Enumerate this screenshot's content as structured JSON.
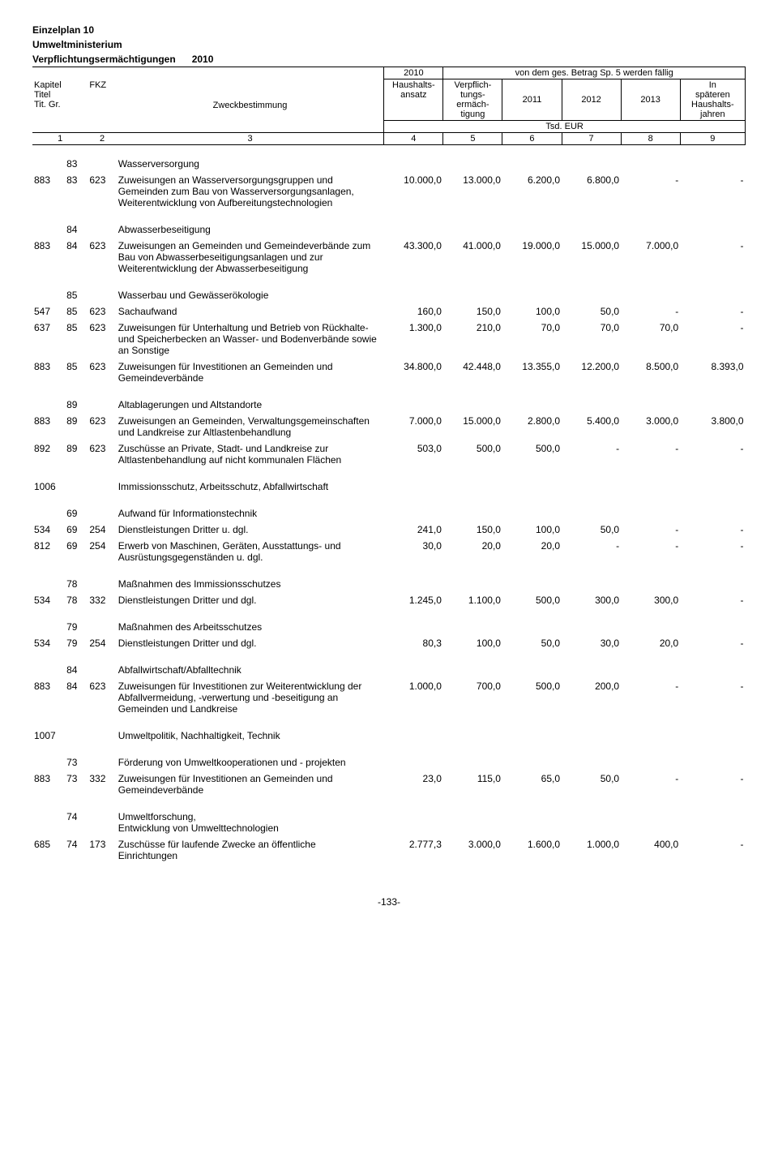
{
  "header": {
    "plan": "Einzelplan 10",
    "ministry": "Umweltministerium",
    "title": "Verpflichtungsermächtigungen",
    "year": "2010",
    "top_note_year": "2010",
    "top_note_right": "von dem ges. Betrag Sp. 5 werden fällig",
    "col_labels": {
      "kapitel": "Kapitel",
      "titel": "Titel",
      "titgr": "Tit. Gr.",
      "fkz": "FKZ",
      "zweck": "Zweckbestimmung",
      "haushalts": "Haushalts-\nansatz",
      "verpflich": "Verpflich-\ntungs-\nermäch-\ntigung",
      "y2011": "2011",
      "y2012": "2012",
      "y2013": "2013",
      "later": "In\nspäteren\nHaushalts-\njahren",
      "unit": "Tsd. EUR"
    },
    "colnums": [
      "1",
      "2",
      "3",
      "4",
      "5",
      "6",
      "7",
      "8",
      "9"
    ]
  },
  "rows": [
    {
      "type": "section",
      "c2": "83",
      "desc": "Wasserversorgung"
    },
    {
      "type": "data",
      "c1": "883",
      "c2": "83",
      "c3": "623",
      "desc": "Zuweisungen an Wasserversorgungsgruppen und Gemeinden zum Bau von Wasserversorgungsanlagen, Weiterentwicklung von Aufbereitungstechnologien",
      "v": [
        "10.000,0",
        "13.000,0",
        "6.200,0",
        "6.800,0",
        "-",
        "-"
      ]
    },
    {
      "type": "section",
      "c2": "84",
      "desc": "Abwasserbeseitigung"
    },
    {
      "type": "data",
      "c1": "883",
      "c2": "84",
      "c3": "623",
      "desc": "Zuweisungen an Gemeinden und Gemeindeverbände zum Bau von Abwasserbeseitigungsanlagen und zur Weiterentwicklung der Abwasserbeseitigung",
      "v": [
        "43.300,0",
        "41.000,0",
        "19.000,0",
        "15.000,0",
        "7.000,0",
        "-"
      ]
    },
    {
      "type": "section",
      "c2": "85",
      "desc": "Wasserbau und Gewässerökologie"
    },
    {
      "type": "data",
      "c1": "547",
      "c2": "85",
      "c3": "623",
      "desc": "Sachaufwand",
      "v": [
        "160,0",
        "150,0",
        "100,0",
        "50,0",
        "-",
        "-"
      ]
    },
    {
      "type": "data",
      "c1": "637",
      "c2": "85",
      "c3": "623",
      "desc": "Zuweisungen für Unterhaltung und Betrieb von Rückhalte- und Speicherbecken an Wasser- und Bodenverbände sowie an Sonstige",
      "v": [
        "1.300,0",
        "210,0",
        "70,0",
        "70,0",
        "70,0",
        "-"
      ]
    },
    {
      "type": "data",
      "c1": "883",
      "c2": "85",
      "c3": "623",
      "desc": "Zuweisungen für Investitionen an Gemeinden und Gemeindeverbände",
      "v": [
        "34.800,0",
        "42.448,0",
        "13.355,0",
        "12.200,0",
        "8.500,0",
        "8.393,0"
      ]
    },
    {
      "type": "section",
      "c2": "89",
      "desc": "Altablagerungen und Altstandorte"
    },
    {
      "type": "data",
      "c1": "883",
      "c2": "89",
      "c3": "623",
      "desc": "Zuweisungen an Gemeinden, Verwaltungsgemeinschaften und Landkreise zur Altlastenbehandlung",
      "v": [
        "7.000,0",
        "15.000,0",
        "2.800,0",
        "5.400,0",
        "3.000,0",
        "3.800,0"
      ]
    },
    {
      "type": "data",
      "c1": "892",
      "c2": "89",
      "c3": "623",
      "desc": "Zuschüsse an Private, Stadt- und Landkreise zur Altlastenbehandlung auf nicht kommunalen Flächen",
      "v": [
        "503,0",
        "500,0",
        "500,0",
        "-",
        "-",
        "-"
      ]
    },
    {
      "type": "chapter",
      "c0": "1006",
      "desc": "Immissionsschutz, Arbeitsschutz, Abfallwirtschaft"
    },
    {
      "type": "section",
      "c2": "69",
      "desc": "Aufwand für Informationstechnik"
    },
    {
      "type": "data",
      "c1": "534",
      "c2": "69",
      "c3": "254",
      "desc": "Dienstleistungen Dritter u. dgl.",
      "v": [
        "241,0",
        "150,0",
        "100,0",
        "50,0",
        "-",
        "-"
      ]
    },
    {
      "type": "data",
      "c1": "812",
      "c2": "69",
      "c3": "254",
      "desc": "Erwerb von Maschinen, Geräten, Ausstattungs- und Ausrüstungsgegenständen u. dgl.",
      "v": [
        "30,0",
        "20,0",
        "20,0",
        "-",
        "-",
        "-"
      ]
    },
    {
      "type": "section",
      "c2": "78",
      "desc": "Maßnahmen des Immissionsschutzes"
    },
    {
      "type": "data",
      "c1": "534",
      "c2": "78",
      "c3": "332",
      "desc": "Dienstleistungen Dritter und dgl.",
      "v": [
        "1.245,0",
        "1.100,0",
        "500,0",
        "300,0",
        "300,0",
        "-"
      ]
    },
    {
      "type": "section",
      "c2": "79",
      "desc": "Maßnahmen des Arbeitsschutzes"
    },
    {
      "type": "data",
      "c1": "534",
      "c2": "79",
      "c3": "254",
      "desc": "Dienstleistungen Dritter und dgl.",
      "v": [
        "80,3",
        "100,0",
        "50,0",
        "30,0",
        "20,0",
        "-"
      ]
    },
    {
      "type": "section",
      "c2": "84",
      "desc": "Abfallwirtschaft/Abfalltechnik"
    },
    {
      "type": "data",
      "c1": "883",
      "c2": "84",
      "c3": "623",
      "desc": "Zuweisungen für Investitionen zur Weiterentwicklung der Abfallvermeidung, -verwertung und -beseitigung an Gemeinden und Landkreise",
      "v": [
        "1.000,0",
        "700,0",
        "500,0",
        "200,0",
        "-",
        "-"
      ]
    },
    {
      "type": "chapter",
      "c0": "1007",
      "desc": "Umweltpolitik, Nachhaltigkeit, Technik"
    },
    {
      "type": "section",
      "c2": "73",
      "desc": "Förderung von Umweltkooperationen und - projekten"
    },
    {
      "type": "data",
      "c1": "883",
      "c2": "73",
      "c3": "332",
      "desc": "Zuweisungen für Investitionen an Gemeinden und Gemeindeverbände",
      "v": [
        "23,0",
        "115,0",
        "65,0",
        "50,0",
        "-",
        "-"
      ]
    },
    {
      "type": "section",
      "c2": "74",
      "desc": "Umweltforschung,\nEntwicklung von Umwelttechnologien"
    },
    {
      "type": "data",
      "c1": "685",
      "c2": "74",
      "c3": "173",
      "desc": "Zuschüsse für laufende Zwecke an öffentliche Einrichtungen",
      "v": [
        "2.777,3",
        "3.000,0",
        "1.600,0",
        "1.000,0",
        "400,0",
        "-"
      ]
    }
  ],
  "page_number": "-133-"
}
